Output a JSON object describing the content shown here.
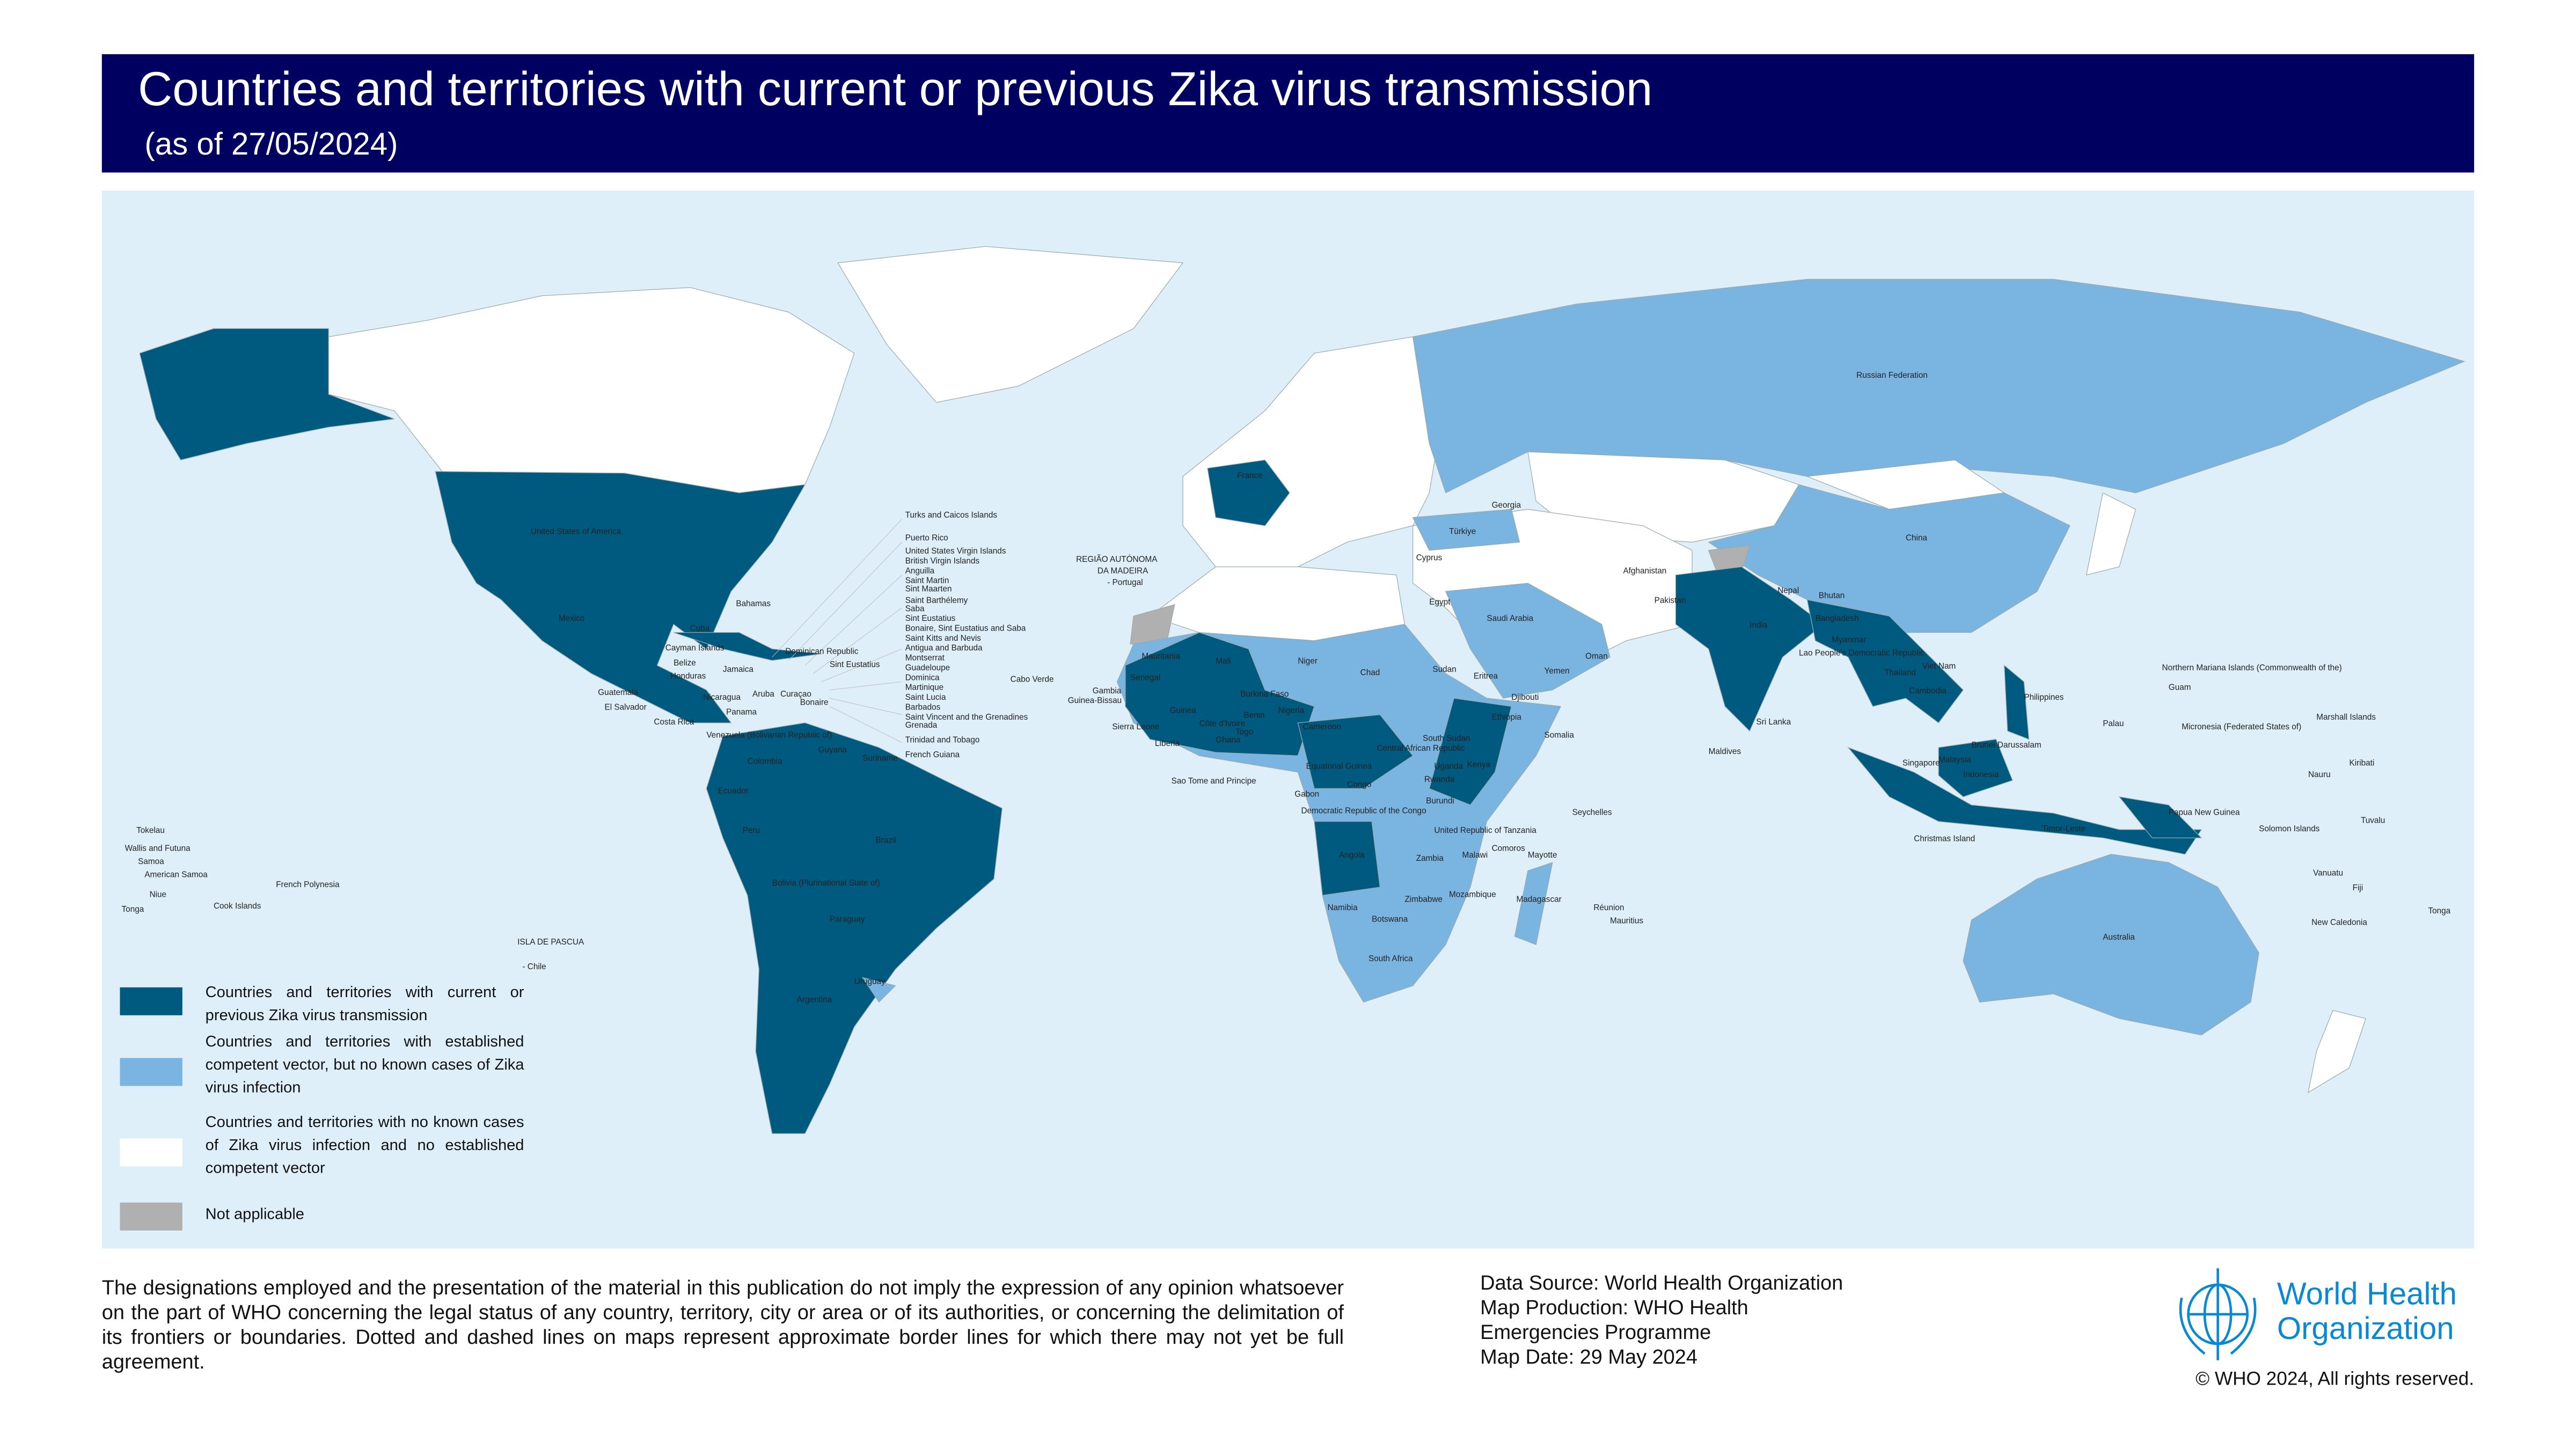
{
  "header": {
    "title": "Countries and territories with current or previous Zika virus transmission",
    "subtitle": "(as of 27/05/2024)"
  },
  "colors": {
    "header_bg": "#000060",
    "ocean": "#dfeffa",
    "current_or_previous": "#005a80",
    "vector_no_cases": "#7ab4e0",
    "no_cases_no_vector": "#ffffff",
    "not_applicable": "#b0b0b0",
    "who_blue": "#0a88d0"
  },
  "legend": [
    {
      "label": "Countries and territories with current or previous Zika virus transmission",
      "color": "#005a80"
    },
    {
      "label": "Countries and territories with established competent vector, but no known cases of Zika virus infection",
      "color": "#7ab4e0"
    },
    {
      "label": "Countries and territories with no known cases of Zika virus infection and no established competent vector",
      "color": "#ffffff"
    },
    {
      "label": "Not applicable",
      "color": "#b0b0b0"
    }
  ],
  "map_labels": [
    "United States of America",
    "Mexico",
    "Bahamas",
    "Cuba",
    "Cayman Islands",
    "Belize",
    "Honduras",
    "Jamaica",
    "Dominican Republic",
    "Sint Eustatius",
    "Guatemala",
    "El Salvador",
    "Nicaragua",
    "Costa Rica",
    "Panama",
    "Aruba",
    "Curaçao",
    "Bonaire",
    "Venezuela (Bolivarian Republic of)",
    "Guyana",
    "Suriname",
    "Colombia",
    "Ecuador",
    "Peru",
    "Brazil",
    "Bolivia (Plurinational State of)",
    "Paraguay",
    "Uruguay",
    "Argentina",
    "ISLA DE PASCUA",
    "- Chile",
    "Turks and Caicos Islands",
    "Puerto Rico",
    "United States Virgin Islands",
    "British Virgin Islands",
    "Anguilla",
    "Saint Martin",
    "Sint Maarten",
    "Saint Barthélemy",
    "Saba",
    "Sint Eustatius",
    "Bonaire, Sint Eustatius and Saba",
    "Saint Kitts and Nevis",
    "Antigua and Barbuda",
    "Montserrat",
    "Guadeloupe",
    "Dominica",
    "Martinique",
    "Saint Lucia",
    "Barbados",
    "Saint Vincent and the Grenadines",
    "Grenada",
    "Trinidad and Tobago",
    "French Guiana",
    "REGIÃO AUTÓNOMA",
    "DA MADEIRA",
    "- Portugal",
    "Cabo Verde",
    "Gambia",
    "Guinea-Bissau",
    "Sierra Leone",
    "Liberia",
    "Mauritania",
    "Mali",
    "Senegal",
    "Guinea",
    "Côte d'Ivoire",
    "Ghana",
    "Togo",
    "Benin",
    "Burkina Faso",
    "Niger",
    "Nigeria",
    "Chad",
    "Sudan",
    "Eritrea",
    "Djibouti",
    "Ethiopia",
    "Somalia",
    "South Sudan",
    "Central African Republic",
    "Cameroon",
    "Equatorial Guinea",
    "Gabon",
    "Congo",
    "Sao Tome and Principe",
    "Democratic Republic of the Congo",
    "Kenya",
    "Uganda",
    "Rwanda",
    "Burundi",
    "United Republic of Tanzania",
    "Angola",
    "Zambia",
    "Malawi",
    "Comoros",
    "Mayotte",
    "Seychelles",
    "Mozambique",
    "Zimbabwe",
    "Madagascar",
    "Namibia",
    "Botswana",
    "Réunion",
    "Mauritius",
    "South Africa",
    "France",
    "Georgia",
    "Türkiye",
    "Cyprus",
    "Egypt",
    "Saudi Arabia",
    "Yemen",
    "Oman",
    "Afghanistan",
    "Pakistan",
    "Nepal",
    "Bhutan",
    "India",
    "Bangladesh",
    "Myanmar",
    "Lao People's Democratic Republic",
    "Viet Nam",
    "Thailand",
    "Cambodia",
    "Sri Lanka",
    "Maldives",
    "Philippines",
    "Singapore",
    "Malaysia",
    "Brunei Darussalam",
    "Indonesia",
    "Christmas Island",
    "Timor-Leste",
    "Papua New Guinea",
    "Solomon Islands",
    "Australia",
    "Russian Federation",
    "China",
    "Northern Mariana Islands (Commonwealth of the)",
    "Guam",
    "Palau",
    "Micronesia (Federated States of)",
    "Marshall Islands",
    "Nauru",
    "Kiribati",
    "Tuvalu",
    "Vanuatu",
    "Fiji",
    "New Caledonia",
    "Tonga",
    "Tokelau",
    "Wallis and Futuna",
    "Samoa",
    "American Samoa",
    "Niue",
    "Tonga",
    "Cook Islands",
    "French Polynesia"
  ],
  "footer": {
    "disclaimer": "The designations employed and the presentation of the material in this publication do not imply the expression of any opinion whatsoever on the part of WHO concerning the legal status of any country, territory, city or area or of its authorities, or concerning the delimitation of its frontiers or boundaries. Dotted and dashed lines on maps represent approximate border lines for which there may not yet be full agreement.",
    "data_source": "Data Source: World Health Organization",
    "map_production_1": "Map Production: WHO Health",
    "map_production_2": "Emergencies Programme",
    "map_date": "Map Date: 29 May 2024",
    "logo_line1": "World Health",
    "logo_line2": "Organization",
    "copyright": "© WHO 2024, All rights reserved."
  }
}
